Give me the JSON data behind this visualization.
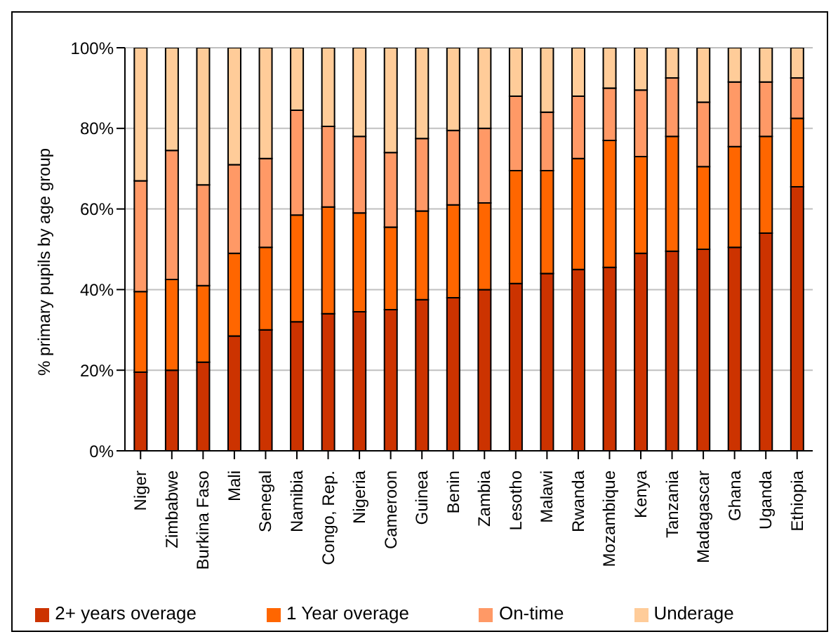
{
  "chart_data": {
    "type": "bar",
    "stacked": true,
    "ylabel": "% primary pupils by age group",
    "categories": [
      "Niger",
      "Zimbabwe",
      "Burkina Faso",
      "Mali",
      "Senegal",
      "Namibia",
      "Congo, Rep.",
      "Nigeria",
      "Cameroon",
      "Guinea",
      "Benin",
      "Zambia",
      "Lesotho",
      "Malawi",
      "Rwanda",
      "Mozambique",
      "Kenya",
      "Tanzania",
      "Madagascar",
      "Ghana",
      "Uganda",
      "Ethiopia"
    ],
    "series": [
      {
        "name": "2+ years overage",
        "color": "#cc3300",
        "values": [
          19.5,
          20,
          22,
          28.5,
          30,
          32,
          34,
          34.5,
          35,
          37.5,
          38,
          40,
          41.5,
          44,
          45,
          45.5,
          49,
          49.5,
          50,
          50.5,
          54,
          65.5
        ]
      },
      {
        "name": "1 Year overage",
        "color": "#ff6600",
        "values": [
          20,
          22.5,
          19,
          20.5,
          20.5,
          26.5,
          26.5,
          24.5,
          20.5,
          22,
          23,
          21.5,
          28,
          25.5,
          27.5,
          31.5,
          24,
          28.5,
          20.5,
          25,
          24,
          17
        ]
      },
      {
        "name": "On-time",
        "color": "#ff9966",
        "values": [
          27.5,
          32,
          25,
          22,
          22,
          26,
          20,
          19,
          18.5,
          18,
          18.5,
          18.5,
          18.5,
          14.5,
          15.5,
          13,
          16.5,
          14.5,
          16,
          16,
          13.5,
          10
        ]
      },
      {
        "name": "Underage",
        "color": "#ffcc99",
        "values": [
          33,
          25.5,
          34,
          29,
          27.5,
          15.5,
          19.5,
          22,
          26,
          22.5,
          20.5,
          20,
          12,
          16,
          12,
          10,
          10.5,
          7.5,
          13.5,
          8.5,
          8.5,
          7.5
        ]
      }
    ],
    "ylim": [
      0,
      100
    ],
    "yticks": [
      {
        "value": 0,
        "label": "0%"
      },
      {
        "value": 20,
        "label": "20%"
      },
      {
        "value": 40,
        "label": "40%"
      },
      {
        "value": 60,
        "label": "60%"
      },
      {
        "value": 80,
        "label": "80%"
      },
      {
        "value": 100,
        "label": "100%"
      }
    ],
    "grid": "y",
    "legend": "bottom"
  }
}
